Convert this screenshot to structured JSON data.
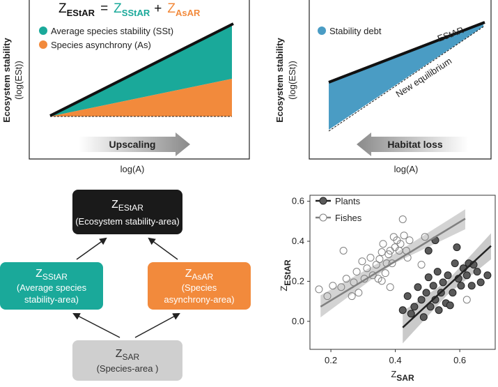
{
  "panel_a": {
    "title": {
      "lhs": {
        "main": "Z",
        "sub": "EStAR"
      },
      "eq": "=",
      "t1": {
        "main": "Z",
        "sub": "SStAR"
      },
      "plus": "+",
      "t2": {
        "main": "Z",
        "sub": "AsAR"
      }
    },
    "legend": [
      "Average species stability (SSt)",
      "Species asynchrony (As)"
    ],
    "y_label": [
      "Ecosystem stability",
      "(log(ESt))"
    ],
    "x_label": "log(A)",
    "arrow": "Upscaling"
  },
  "panel_b": {
    "legend": [
      "Stability debt"
    ],
    "line_labels": [
      "EStAR",
      "New equilibrium"
    ],
    "y_label": [
      "Ecosystem stability",
      "(log(ESt))"
    ],
    "x_label": "log(A)",
    "arrow": "Habitat loss"
  },
  "diagram": {
    "nodes": [
      {
        "main": "Z",
        "sub": "EStAR",
        "desc": [
          "(Ecosystem stability-area)"
        ]
      },
      {
        "main": "Z",
        "sub": "SStAR",
        "desc": [
          "(Average species",
          "stability-area)"
        ]
      },
      {
        "main": "Z",
        "sub": "AsAR",
        "desc": [
          "(Species",
          "asynchrony-area)"
        ]
      },
      {
        "main": "Z",
        "sub": "SAR",
        "desc": [
          "(Species-area )"
        ]
      }
    ]
  },
  "chart_data": {
    "type": "scatter",
    "x_label": {
      "main": "Z",
      "sub": "SAR"
    },
    "y_label": {
      "main": "Z",
      "sub": "EStAR"
    },
    "xlim": [
      0.135,
      0.71
    ],
    "ylim": [
      -0.14,
      0.63
    ],
    "xticks": [
      0.2,
      0.4,
      0.6
    ],
    "yticks": [
      {
        "value": 0,
        "label": "0.0"
      },
      0.2,
      0.4,
      0.6
    ],
    "series": [
      {
        "name": "Plants",
        "color": "#222222",
        "marker_fill": "#5a5a5a",
        "band_color": "#bdbdbd",
        "x": [
          0.423,
          0.438,
          0.449,
          0.459,
          0.47,
          0.481,
          0.488,
          0.496,
          0.503,
          0.509,
          0.518,
          0.524,
          0.531,
          0.535,
          0.542,
          0.548,
          0.557,
          0.563,
          0.57,
          0.578,
          0.585,
          0.591,
          0.596,
          0.604,
          0.611,
          0.622,
          0.628,
          0.637,
          0.643,
          0.654,
          0.665,
          0.686,
          0.503,
          0.524
        ],
        "values": [
          0.056,
          0.126,
          0.038,
          0.073,
          0.171,
          0.108,
          0.021,
          0.143,
          0.22,
          0.073,
          0.178,
          0.108,
          0.248,
          0.056,
          0.143,
          0.195,
          0.091,
          0.23,
          0.08,
          0.143,
          0.29,
          0.37,
          0.213,
          0.178,
          0.265,
          0.23,
          0.29,
          0.178,
          0.283,
          0.248,
          0.195,
          0.23,
          0.353,
          0.405
        ],
        "fit": {
          "x": [
            0.423,
            0.697
          ],
          "values": [
            -0.031,
            0.377
          ]
        },
        "ci": {
          "x": [
            0.423,
            0.56,
            0.697
          ],
          "upper": [
            0.05,
            0.2,
            0.44
          ],
          "lower": [
            -0.11,
            0.13,
            0.31
          ]
        }
      },
      {
        "name": "Fishes",
        "color": "#808080",
        "marker_fill": "none",
        "band_color": "#c8c8c8",
        "x": [
          0.163,
          0.189,
          0.206,
          0.232,
          0.239,
          0.248,
          0.265,
          0.271,
          0.28,
          0.286,
          0.297,
          0.304,
          0.312,
          0.323,
          0.33,
          0.341,
          0.347,
          0.351,
          0.358,
          0.362,
          0.369,
          0.373,
          0.379,
          0.384,
          0.39,
          0.395,
          0.399,
          0.405,
          0.412,
          0.416,
          0.423,
          0.427,
          0.434,
          0.438,
          0.444,
          0.384,
          0.358,
          0.481,
          0.492,
          0.622
        ],
        "values": [
          0.16,
          0.126,
          0.178,
          0.171,
          0.353,
          0.213,
          0.126,
          0.195,
          0.248,
          0.143,
          0.3,
          0.213,
          0.265,
          0.318,
          0.23,
          0.283,
          0.213,
          0.311,
          0.346,
          0.387,
          0.241,
          0.29,
          0.335,
          0.353,
          0.29,
          0.422,
          0.37,
          0.405,
          0.353,
          0.387,
          0.51,
          0.429,
          0.353,
          0.318,
          0.405,
          0.171,
          0.202,
          0.283,
          0.422,
          0.108
        ],
        "fit": {
          "x": [
            0.168,
            0.617
          ],
          "values": [
            0.073,
            0.513
          ]
        },
        "ci": {
          "x": [
            0.168,
            0.39,
            0.617
          ],
          "upper": [
            0.13,
            0.33,
            0.56
          ],
          "lower": [
            0.02,
            0.285,
            0.46
          ]
        }
      }
    ]
  }
}
